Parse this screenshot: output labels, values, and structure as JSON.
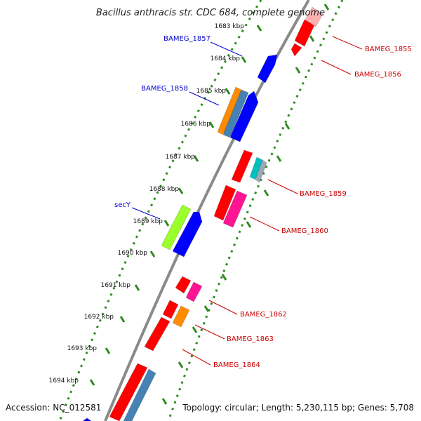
{
  "title": "Bacillus anthracis str. CDC 684, complete genome",
  "footer": {
    "accession": "Accession: NC_012581",
    "summary": "Topology: circular; Length: 5,230,115 bp; Genes: 5,708"
  },
  "colors": {
    "backbone": "#8a8a8a",
    "dotted_ring": "#2e8b1e",
    "forward_label": "#0000cc",
    "reverse_label": "#cc0000"
  },
  "ticks": [
    "1683 kbp",
    "1684 kbp",
    "1685 kbp",
    "1686 kbp",
    "1687 kbp",
    "1688 kbp",
    "1689 kbp",
    "1690 kbp",
    "1691 kbp",
    "1692 kbp",
    "1693 kbp",
    "1694 kbp"
  ],
  "labels": {
    "forward": [
      "BAMEG_1857",
      "BAMEG_1858",
      "secY"
    ],
    "reverse": [
      "BAMEG_1855",
      "BAMEG_1856",
      "BAMEG_1859",
      "BAMEG_1860",
      "BAMEG_1862",
      "BAMEG_1863",
      "BAMEG_1864"
    ]
  },
  "features": [
    {
      "id": "f1",
      "color": "#ff0000"
    },
    {
      "id": "f2",
      "color": "#ff0000"
    },
    {
      "id": "f3",
      "color": "#ffb0b0"
    },
    {
      "id": "f4",
      "color": "#0000ff"
    },
    {
      "id": "f5",
      "color": "#ff8c00"
    },
    {
      "id": "f6",
      "color": "#4682b4"
    },
    {
      "id": "f7",
      "color": "#0000ff"
    },
    {
      "id": "f8",
      "color": "#ff0000"
    },
    {
      "id": "f9",
      "color": "#00c0c0"
    },
    {
      "id": "f10",
      "color": "#9aa8b8"
    },
    {
      "id": "f11",
      "color": "#ff0000"
    },
    {
      "id": "f12",
      "color": "#ff1493"
    },
    {
      "id": "f13",
      "color": "#9aff2a"
    },
    {
      "id": "f14",
      "color": "#0000ff"
    },
    {
      "id": "f15",
      "color": "#ff0000"
    },
    {
      "id": "f16",
      "color": "#ff1493"
    },
    {
      "id": "f17",
      "color": "#ff0000"
    },
    {
      "id": "f18",
      "color": "#ff8c00"
    },
    {
      "id": "f19",
      "color": "#ff0000"
    },
    {
      "id": "f20",
      "color": "#ff0000"
    },
    {
      "id": "f21",
      "color": "#4682b4"
    },
    {
      "id": "f22",
      "color": "#0000ff"
    }
  ]
}
